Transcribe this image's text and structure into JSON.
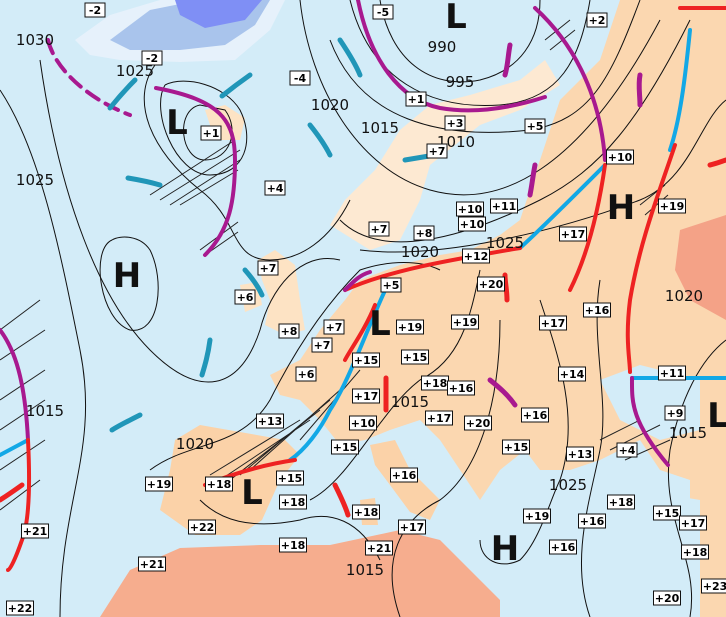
{
  "map": {
    "colors": {
      "sea": "#d3ecf8",
      "land": "#fde3c4",
      "land_warm": "#f9c9a0",
      "land_hot": "#f4a287",
      "ice_cold": "#7f8ff5",
      "cold_front": "#12a8e6",
      "warm_front": "#ee2222",
      "occluded_front": "#a8198f",
      "isobar": "#111111",
      "wind_cold": "#2096b8"
    },
    "pressure_systems": [
      "L",
      "H",
      "L",
      "H",
      "L",
      "L",
      "H",
      "L"
    ],
    "isobar_labels": [
      "1030",
      "1025",
      "1025",
      "1020",
      "1015",
      "990",
      "995",
      "1010",
      "1020",
      "1025",
      "1020",
      "1015",
      "1020",
      "1015",
      "1025",
      "1015",
      "1015"
    ],
    "temperatures": [
      "-2",
      "-2",
      "-4",
      "+1",
      "+4",
      "+7",
      "+6",
      "+8",
      "+7",
      "+7",
      "+6",
      "+13",
      "+19",
      "+18",
      "+22",
      "+15",
      "+18",
      "+21",
      "+22",
      "+21",
      "+18",
      "+15",
      "+10",
      "+17",
      "+15",
      "+19",
      "-5",
      "+1",
      "+3",
      "+5",
      "+7",
      "+2",
      "+10",
      "+11",
      "+10",
      "+10",
      "+7",
      "+8",
      "+12",
      "+20",
      "+17",
      "+19",
      "+16",
      "+5",
      "+19",
      "+17",
      "+15",
      "+18",
      "+16",
      "+17",
      "+20",
      "+14",
      "+16",
      "+15",
      "+13",
      "+16",
      "+17",
      "+18",
      "+21",
      "+19",
      "+16",
      "+16",
      "+18",
      "+15",
      "+17",
      "+18",
      "+23",
      "+20",
      "+11",
      "+9",
      "+4"
    ]
  }
}
